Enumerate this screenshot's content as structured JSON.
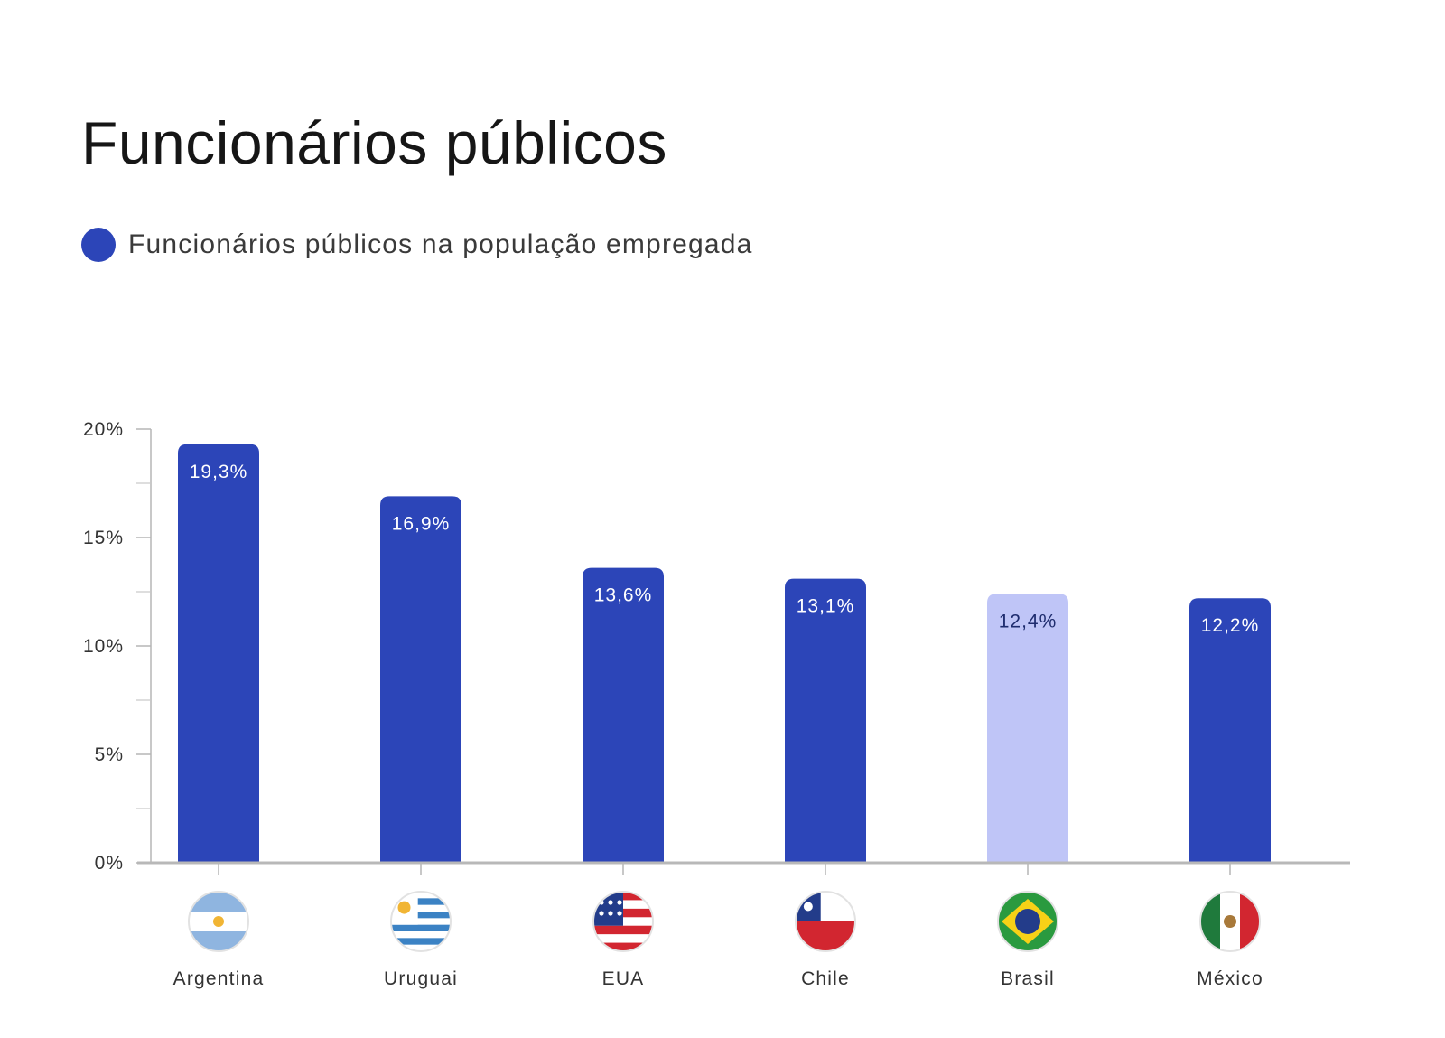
{
  "chart_data": {
    "type": "bar",
    "title": "Funcionários públicos",
    "legend": [
      {
        "name": "Funcionários públicos na população empregada",
        "color": "#2c45b8"
      }
    ],
    "categories": [
      "Argentina",
      "Uruguai",
      "EUA",
      "Chile",
      "Brasil",
      "México"
    ],
    "flag_icons": [
      "flag-argentina-icon",
      "flag-uruguay-icon",
      "flag-usa-icon",
      "flag-chile-icon",
      "flag-brazil-icon",
      "flag-mexico-icon"
    ],
    "series": [
      {
        "name": "Funcionários públicos na população empregada",
        "values": [
          19.3,
          16.9,
          13.6,
          13.1,
          12.4,
          12.2
        ]
      }
    ],
    "value_labels": [
      "19,3%",
      "16,9%",
      "13,6%",
      "13,1%",
      "12,4%",
      "12,2%"
    ],
    "highlight": {
      "category": "Brasil",
      "color": "#bfc5f7",
      "label_color": "#1e2c6e"
    },
    "bar_color": "#2c45b8",
    "ylim": [
      0,
      20
    ],
    "yticks": [
      0,
      5,
      10,
      15,
      20
    ],
    "ytick_labels": [
      "0%",
      "5%",
      "10%",
      "15%",
      "20%"
    ],
    "grid": false,
    "legend_position": "top-left"
  }
}
